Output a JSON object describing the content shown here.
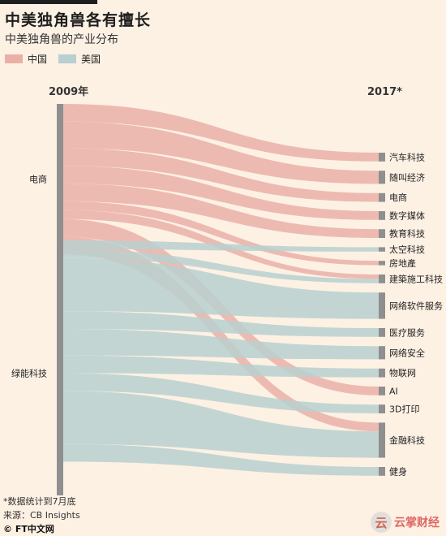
{
  "title": "中美独角兽各有擅长",
  "subtitle": "中美独角兽的产业分布",
  "legend": [
    {
      "label": "中国",
      "color": "#eab0a8"
    },
    {
      "label": "美国",
      "color": "#b8d0cf"
    }
  ],
  "chart_data": {
    "type": "sankey",
    "left_header": "2009年",
    "right_header": "2017*",
    "left_nodes": [
      {
        "label": "电商",
        "size": 17
      },
      {
        "label": "绿能科技",
        "size": 30
      }
    ],
    "right_nodes": [
      {
        "label": "汽车科技",
        "size": 2
      },
      {
        "label": "随叫经济",
        "size": 3
      },
      {
        "label": "电商",
        "size": 2
      },
      {
        "label": "数字媒体",
        "size": 2
      },
      {
        "label": "教育科技",
        "size": 2
      },
      {
        "label": "太空科技",
        "size": 1
      },
      {
        "label": "房地產",
        "size": 1
      },
      {
        "label": "建築施工科技",
        "size": 2
      },
      {
        "label": "网络软件服务",
        "size": 6
      },
      {
        "label": "医疗服务",
        "size": 2
      },
      {
        "label": "网络安全",
        "size": 3
      },
      {
        "label": "物联网",
        "size": 2
      },
      {
        "label": "AI",
        "size": 2
      },
      {
        "label": "3D打印",
        "size": 2
      },
      {
        "label": "金融科技",
        "size": 8
      },
      {
        "label": "健身",
        "size": 2
      }
    ],
    "flows": [
      {
        "from": 0,
        "to": 0,
        "country": "中国",
        "value": 2
      },
      {
        "from": 0,
        "to": 1,
        "country": "中国",
        "value": 3
      },
      {
        "from": 0,
        "to": 2,
        "country": "中国",
        "value": 2
      },
      {
        "from": 0,
        "to": 3,
        "country": "中国",
        "value": 2
      },
      {
        "from": 0,
        "to": 4,
        "country": "中国",
        "value": 2
      },
      {
        "from": 0,
        "to": 6,
        "country": "中国",
        "value": 1
      },
      {
        "from": 0,
        "to": 7,
        "country": "中国",
        "value": 1
      },
      {
        "from": 0,
        "to": 12,
        "country": "中国",
        "value": 2
      },
      {
        "from": 0,
        "to": 14,
        "country": "中国",
        "value": 2
      },
      {
        "from": 1,
        "to": 5,
        "country": "美国",
        "value": 1
      },
      {
        "from": 1,
        "to": 7,
        "country": "美国",
        "value": 1
      },
      {
        "from": 1,
        "to": 8,
        "country": "美国",
        "value": 6
      },
      {
        "from": 1,
        "to": 9,
        "country": "美国",
        "value": 2
      },
      {
        "from": 1,
        "to": 10,
        "country": "美国",
        "value": 3
      },
      {
        "from": 1,
        "to": 11,
        "country": "美国",
        "value": 2
      },
      {
        "from": 1,
        "to": 13,
        "country": "美国",
        "value": 2
      },
      {
        "from": 1,
        "to": 14,
        "country": "美国",
        "value": 6
      },
      {
        "from": 1,
        "to": 15,
        "country": "美国",
        "value": 2
      }
    ],
    "colors": {
      "中国": "#eab0a8",
      "美国": "#b8d0cf",
      "node": "#8f8f8f"
    }
  },
  "footnote": "*数据统计到7月底",
  "source": "来源：CB Insights",
  "credit": "© FT中文网",
  "watermark": {
    "icon": "云",
    "text": "云掌财经"
  }
}
